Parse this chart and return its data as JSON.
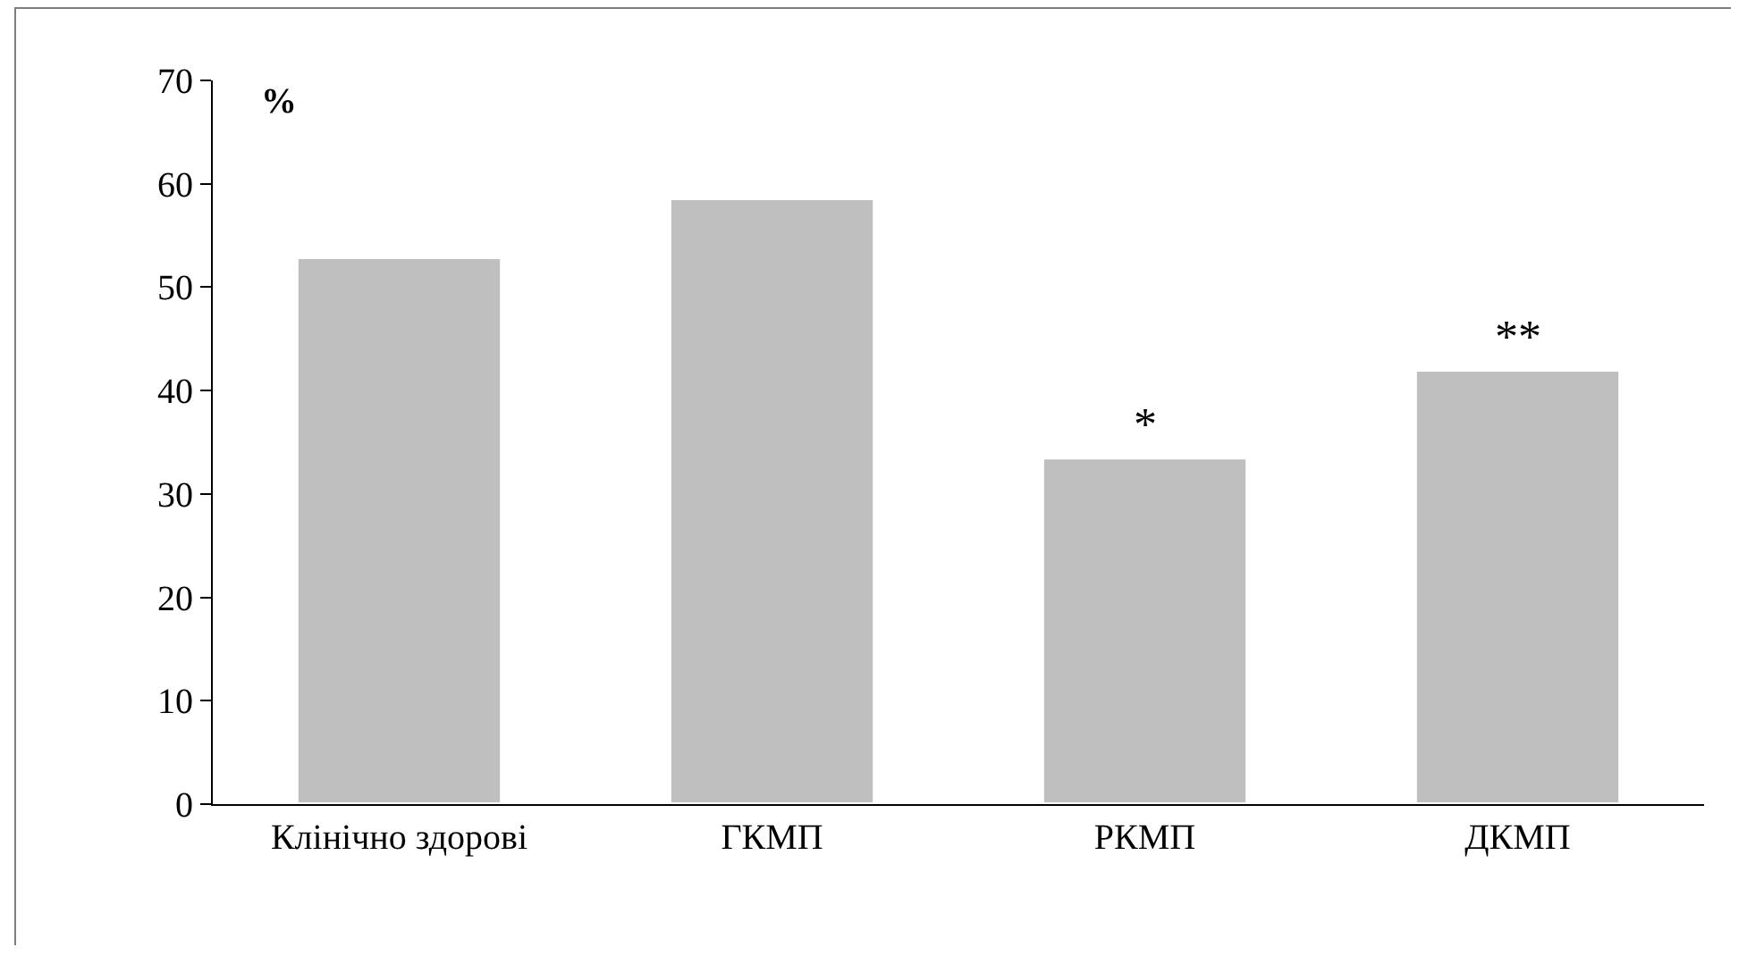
{
  "chart_data": {
    "type": "bar",
    "ylabel": "%",
    "categories": [
      "Клінічно здорові",
      "ГКМП",
      "РКМП",
      "ДКМП"
    ],
    "values": [
      52.9,
      58.6,
      33.5,
      42
    ],
    "color": "#bfbfbf",
    "ylim": [
      0,
      70
    ],
    "yticks": [
      0,
      10,
      20,
      30,
      40,
      50,
      60,
      70
    ],
    "grid": false,
    "annotations": [
      {
        "text": "*",
        "x": "РКМП",
        "y": 33.5
      },
      {
        "text": "**",
        "x": "ДКМП",
        "y": 42
      }
    ]
  }
}
